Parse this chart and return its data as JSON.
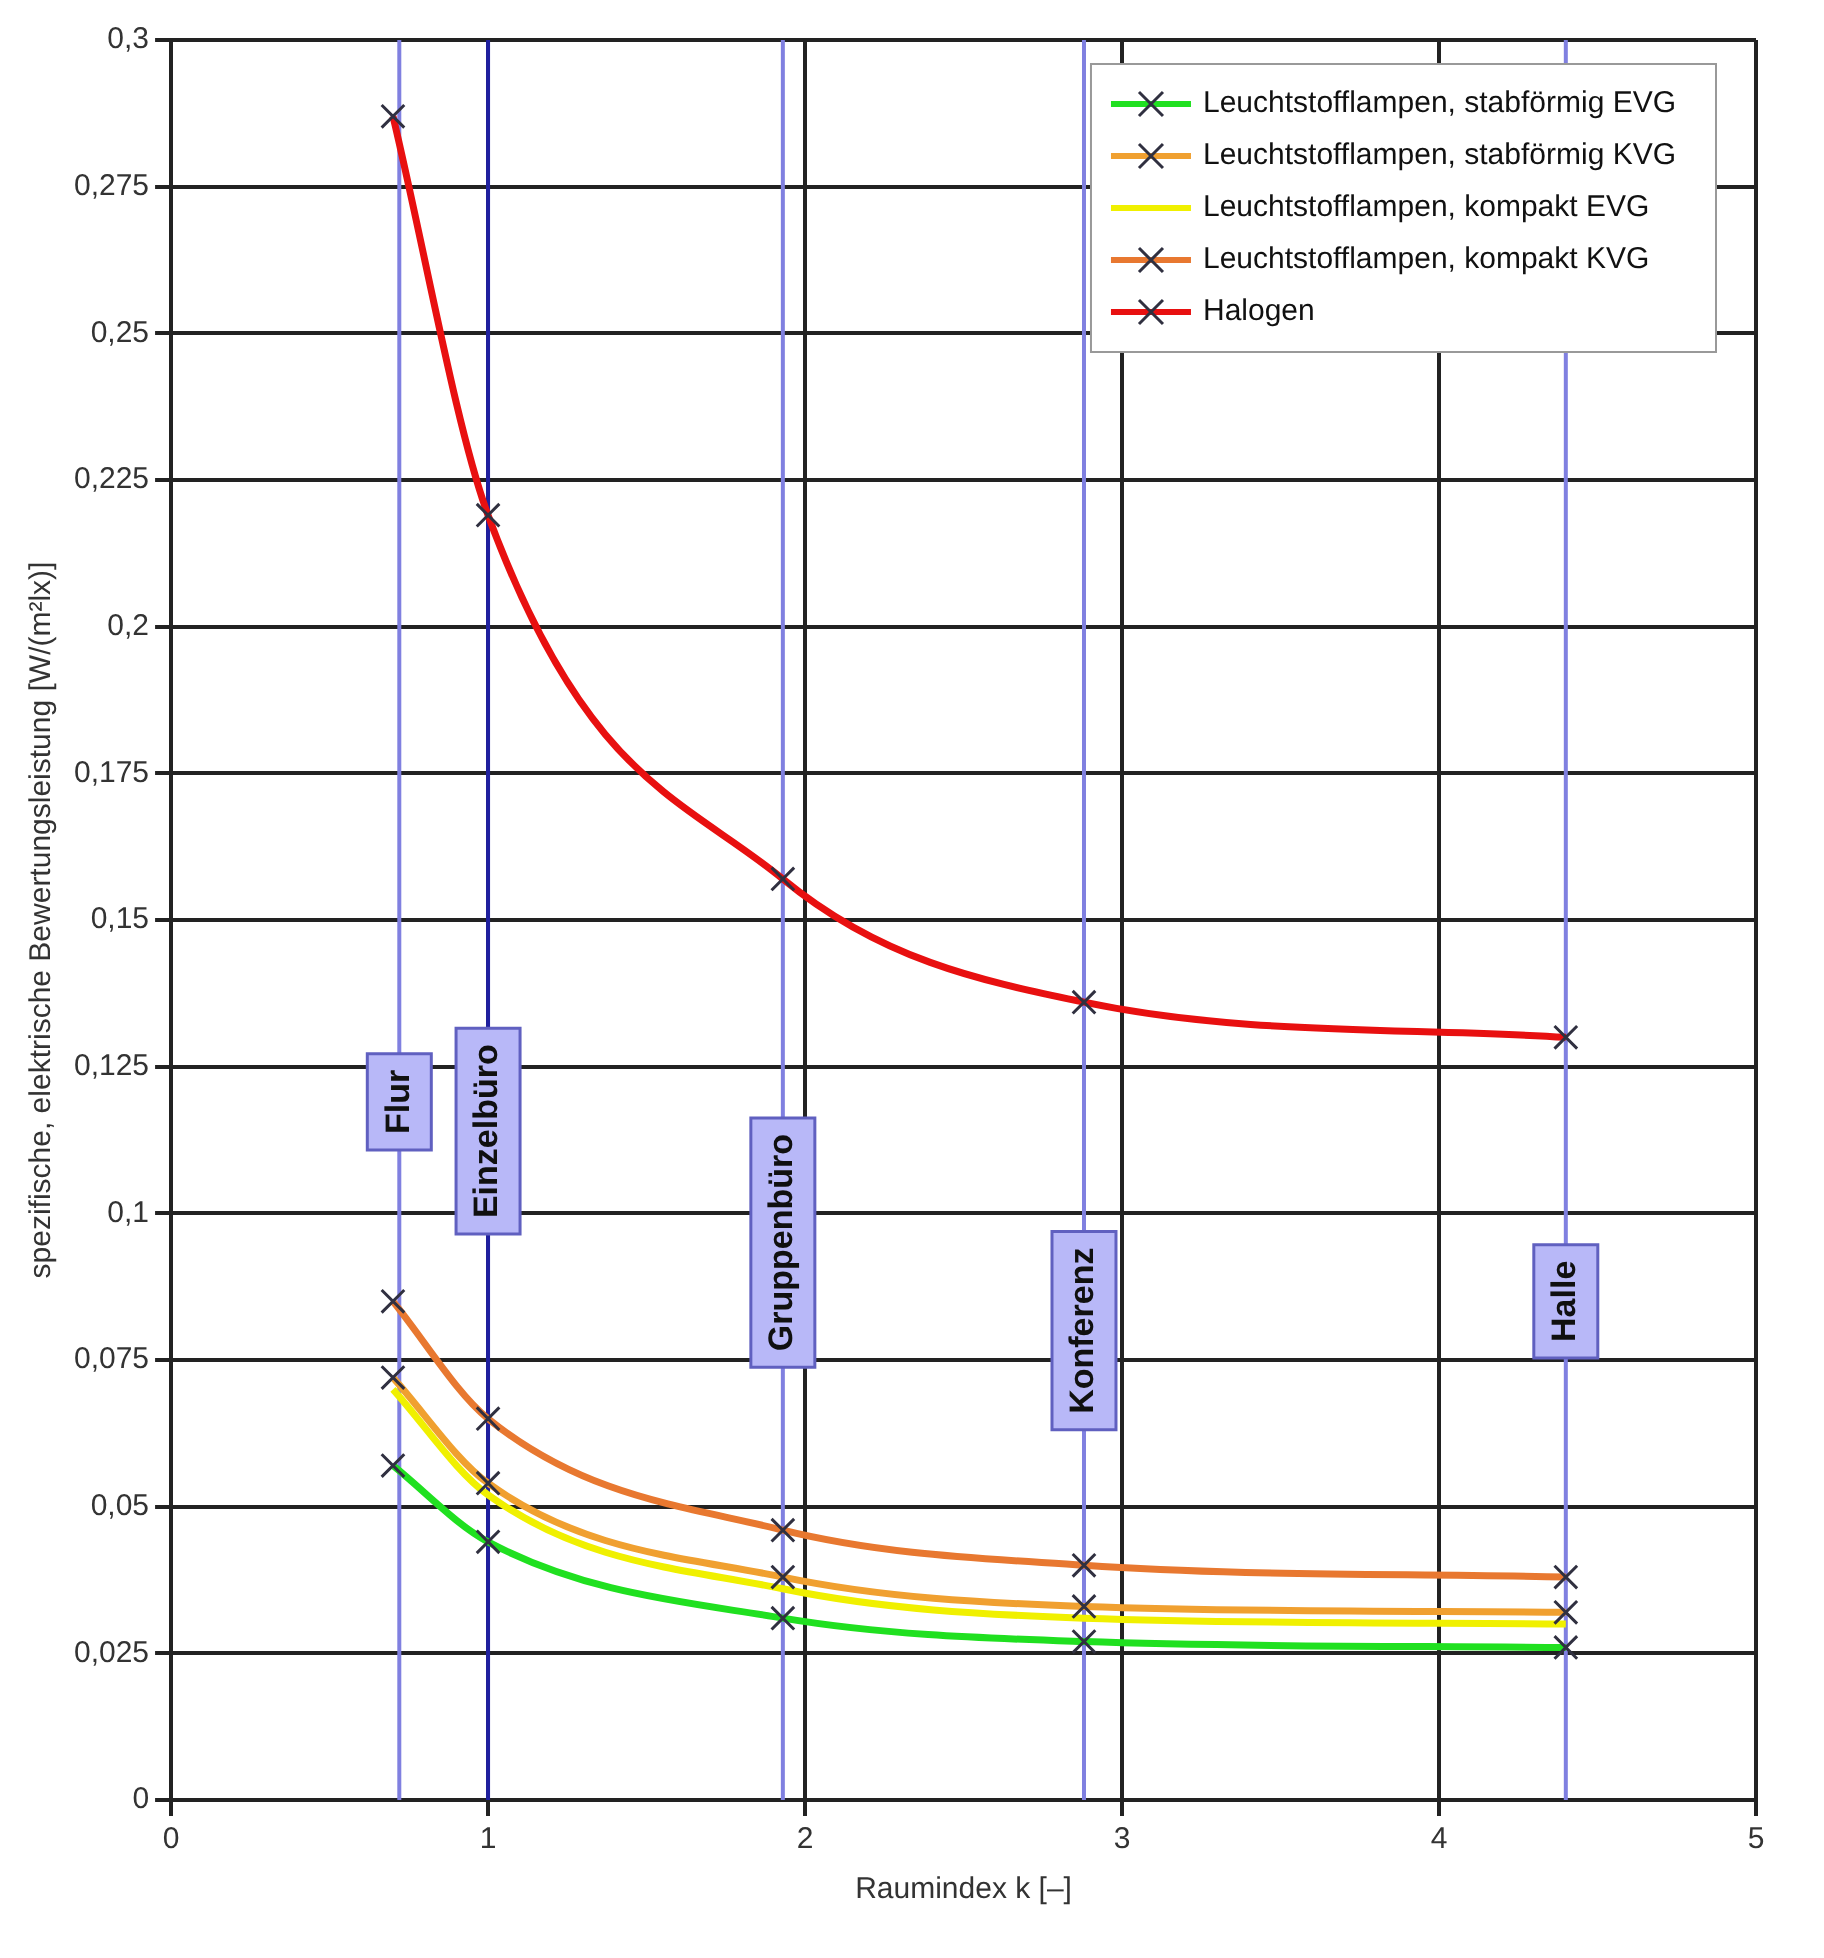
{
  "chart_data": {
    "type": "line",
    "xlabel": "Raumindex k [–]",
    "ylabel": "spezifische, elektrische Bewertungsleistung [W/(m²lx)]",
    "x": [
      0.7,
      1,
      1.93,
      2.88,
      4.4
    ],
    "series": [
      {
        "name": "Leuchtstofflampen, stabförmig EVG",
        "color": "#20e020",
        "values": [
          0.057,
          0.044,
          0.031,
          0.027,
          0.026
        ]
      },
      {
        "name": "Leuchtstofflampen, stabförmig KVG",
        "color": "#f0a030",
        "values": [
          0.072,
          0.054,
          0.038,
          0.033,
          0.032
        ]
      },
      {
        "name": "Leuchtstofflampen, kompakt EVG",
        "color": "#f0f000",
        "marker": "none",
        "values": [
          0.07,
          0.052,
          0.036,
          0.031,
          0.03
        ]
      },
      {
        "name": "Leuchtstofflampen, kompakt KVG",
        "color": "#e87830",
        "values": [
          0.085,
          0.065,
          0.046,
          0.04,
          0.038
        ]
      },
      {
        "name": "Halogen",
        "color": "#e81010",
        "values": [
          0.287,
          0.219,
          0.157,
          0.136,
          0.13
        ]
      }
    ],
    "xlim": [
      0,
      5
    ],
    "xticks": [
      0,
      1,
      2,
      3,
      4,
      5
    ],
    "ylim": [
      0,
      0.3
    ],
    "yticks": [
      0,
      {
        "value": 0.025,
        "label": "0,025"
      },
      {
        "value": 0.05,
        "label": "0,05"
      },
      {
        "value": 0.075,
        "label": "0,075"
      },
      {
        "value": 0.1,
        "label": "0,1"
      },
      {
        "value": 0.125,
        "label": "0,125"
      },
      {
        "value": 0.15,
        "label": "0,15"
      },
      {
        "value": 0.175,
        "label": "0,175"
      },
      {
        "value": 0.2,
        "label": "0,2"
      },
      {
        "value": 0.225,
        "label": "0,225"
      },
      {
        "value": 0.25,
        "label": "0,25"
      },
      {
        "value": 0.275,
        "label": "0,275"
      },
      {
        "value": 0.3,
        "label": "0,3"
      }
    ],
    "ref_lines": [
      {
        "axis": "x",
        "value": 0.72,
        "label": "Flur",
        "color": "#8080e0"
      },
      {
        "axis": "x",
        "value": 1,
        "label": "Einzelbüro",
        "color": "#2020a0"
      },
      {
        "axis": "x",
        "value": 1.93,
        "label": "Gruppenbüro",
        "color": "#8080e0"
      },
      {
        "axis": "x",
        "value": 2.88,
        "label": "Konferenz",
        "color": "#8080e0"
      },
      {
        "axis": "x",
        "value": 4.4,
        "label": "Halle",
        "color": "#8080e0"
      }
    ],
    "grid": true,
    "legend": "top right",
    "marker": "cross",
    "line_style": "solid"
  }
}
